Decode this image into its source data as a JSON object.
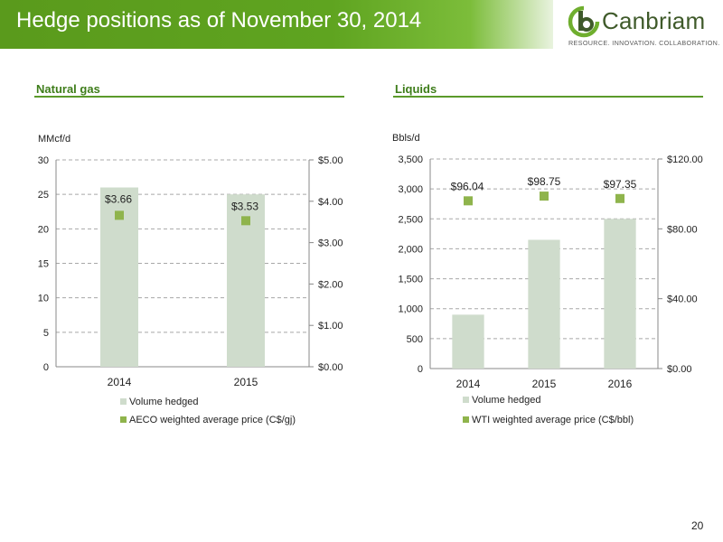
{
  "header": {
    "title": "Hedge positions as of November 30, 2014"
  },
  "logo": {
    "word": "Canbriam",
    "tagline": "RESOURCE. INNOVATION. COLLABORATION."
  },
  "page_number": "20",
  "colors": {
    "accent": "#5fa420",
    "bar": "#cfdccc",
    "marker": "#8fb44c",
    "grid": "#a8a8a8"
  },
  "sections": [
    {
      "title": "Natural gas"
    },
    {
      "title": "Liquids"
    }
  ],
  "chart_data": [
    {
      "type": "bar",
      "title": "Natural gas",
      "categories": [
        "2014",
        "2015"
      ],
      "ylabel": "MMcf/d",
      "ylim": [
        0,
        30
      ],
      "y_ticks": [
        "0",
        "5",
        "10",
        "15",
        "20",
        "25",
        "30"
      ],
      "y2lim": [
        0,
        5
      ],
      "y2_ticks": [
        "$0.00",
        "$1.00",
        "$2.00",
        "$3.00",
        "$4.00",
        "$5.00"
      ],
      "grid": true,
      "legend_position": "bottom",
      "series": [
        {
          "name": "Volume hedged",
          "type": "bar",
          "axis": "left",
          "values": [
            26,
            25
          ]
        },
        {
          "name": "AECO weighted average price (C$/gj)",
          "type": "scatter",
          "axis": "right",
          "values": [
            3.66,
            3.53
          ],
          "labels": [
            "$3.66",
            "$3.53"
          ]
        }
      ]
    },
    {
      "type": "bar",
      "title": "Liquids",
      "categories": [
        "2014",
        "2015",
        "2016"
      ],
      "ylabel": "Bbls/d",
      "ylim": [
        0,
        3500
      ],
      "y_ticks": [
        "0",
        "500",
        "1,000",
        "1,500",
        "2,000",
        "2,500",
        "3,000",
        "3,500"
      ],
      "y2lim": [
        0,
        120
      ],
      "y2_ticks": [
        "$0.00",
        "$40.00",
        "$80.00",
        "$120.00"
      ],
      "grid": true,
      "legend_position": "bottom",
      "series": [
        {
          "name": "Volume hedged",
          "type": "bar",
          "axis": "left",
          "values": [
            900,
            2150,
            2500
          ]
        },
        {
          "name": "WTI weighted average price (C$/bbl)",
          "type": "scatter",
          "axis": "right",
          "values": [
            96.04,
            98.75,
            97.35
          ],
          "labels": [
            "$96.04",
            "$98.75",
            "$97.35"
          ]
        }
      ]
    }
  ]
}
